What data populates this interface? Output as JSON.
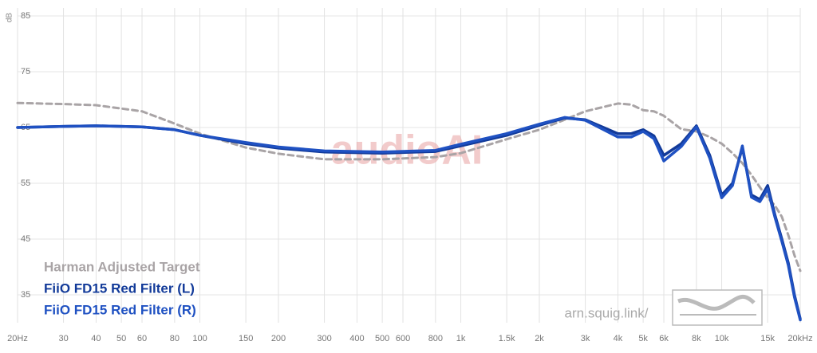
{
  "chart_data": {
    "type": "line",
    "y_label": "dB",
    "watermark": "audioAI",
    "site": "arn.squig.link/",
    "xscale": "log",
    "grid": true,
    "x": [
      20,
      30,
      40,
      60,
      80,
      100,
      150,
      200,
      300,
      500,
      800,
      1000,
      1500,
      2000,
      2500,
      3000,
      4000,
      4500,
      5000,
      5500,
      6000,
      7000,
      8000,
      9000,
      10000,
      11000,
      12000,
      13000,
      14000,
      15000,
      16000,
      17000,
      18000,
      19000,
      20000
    ],
    "series": [
      {
        "name": "Harman Adjusted Target",
        "color": "#a9a4a6",
        "dashed": true,
        "values": [
          69.4,
          69.2,
          69,
          67.9,
          65.7,
          63.9,
          61.4,
          60.3,
          59.3,
          59.3,
          59.7,
          60.4,
          62.9,
          64.6,
          66.4,
          67.9,
          69.3,
          69.1,
          68.1,
          67.9,
          67.1,
          64.7,
          64.3,
          63.3,
          62.1,
          60.4,
          58.6,
          56.5,
          54.3,
          52.4,
          51,
          49,
          45.7,
          42.1,
          39.3
        ]
      },
      {
        "name": "FiiO FD15 Red Filter (L)",
        "color": "#123a99",
        "values": [
          65,
          65.2,
          65.3,
          65.1,
          64.6,
          63.6,
          62.1,
          61.3,
          60.6,
          60.4,
          60.7,
          61.7,
          63.6,
          65.4,
          66.7,
          66.4,
          63.9,
          63.9,
          64.6,
          63.5,
          60,
          62.1,
          65.3,
          60,
          52.9,
          55,
          61.4,
          52.9,
          52.1,
          54.6,
          49.3,
          45,
          40.7,
          35,
          30.7
        ]
      },
      {
        "name": "FiiO FD15 Red Filter (R)",
        "color": "#1f51c2",
        "values": [
          65,
          65.2,
          65.3,
          65.1,
          64.6,
          63.6,
          62.3,
          61.5,
          60.8,
          60.6,
          60.9,
          62,
          63.9,
          65.6,
          66.8,
          66.3,
          63.3,
          63.3,
          64.3,
          63,
          59,
          61.6,
          65.1,
          59.5,
          52.4,
          54.6,
          61.7,
          52.5,
          51.7,
          54,
          48.9,
          44.6,
          40.3,
          34.6,
          30.5
        ]
      }
    ],
    "xlim": [
      20,
      20000
    ],
    "xticks": [
      {
        "value": 20,
        "label": "20Hz"
      },
      30,
      40,
      50,
      60,
      80,
      100,
      150,
      200,
      300,
      400,
      500,
      600,
      800,
      {
        "value": 1000,
        "label": "1k"
      },
      {
        "value": 1500,
        "label": "1.5k"
      },
      {
        "value": 2000,
        "label": "2k"
      },
      {
        "value": 3000,
        "label": "3k"
      },
      {
        "value": 4000,
        "label": "4k"
      },
      {
        "value": 5000,
        "label": "5k"
      },
      {
        "value": 6000,
        "label": "6k"
      },
      {
        "value": 8000,
        "label": "8k"
      },
      {
        "value": 10000,
        "label": "10k"
      },
      {
        "value": 15000,
        "label": "15k"
      },
      {
        "value": 20000,
        "label": "20kHz"
      }
    ],
    "ylim": [
      30,
      85
    ],
    "yticks": [
      35,
      45,
      55,
      65,
      75,
      85
    ]
  }
}
